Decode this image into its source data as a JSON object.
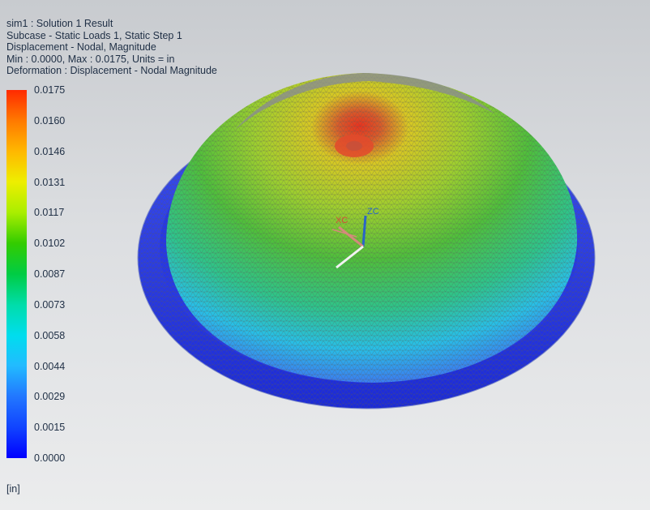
{
  "header": {
    "line1": "sim1 : Solution 1 Result",
    "line2": "Subcase - Static Loads 1, Static Step 1",
    "line3": "Displacement - Nodal, Magnitude",
    "line4": "Min : 0.0000, Max : 0.0175, Units = in",
    "line5": "Deformation : Displacement - Nodal Magnitude"
  },
  "legend": {
    "labels": [
      "0.0175",
      "0.0160",
      "0.0146",
      "0.0131",
      "0.0117",
      "0.0102",
      "0.0087",
      "0.0073",
      "0.0058",
      "0.0044",
      "0.0029",
      "0.0015",
      "0.0000"
    ],
    "colors": [
      "#ff2a00",
      "#ff7a00",
      "#ffb800",
      "#eeee00",
      "#aaee00",
      "#33cc00",
      "#00cc44",
      "#00ddaa",
      "#00ddee",
      "#22bbff",
      "#2277ff",
      "#1144ff",
      "#0000ff"
    ],
    "units": "[in]"
  },
  "triad": {
    "xc": "XC",
    "zc": "ZC",
    "xc_color": "#d44a3a",
    "zc_color": "#2a64c8"
  }
}
